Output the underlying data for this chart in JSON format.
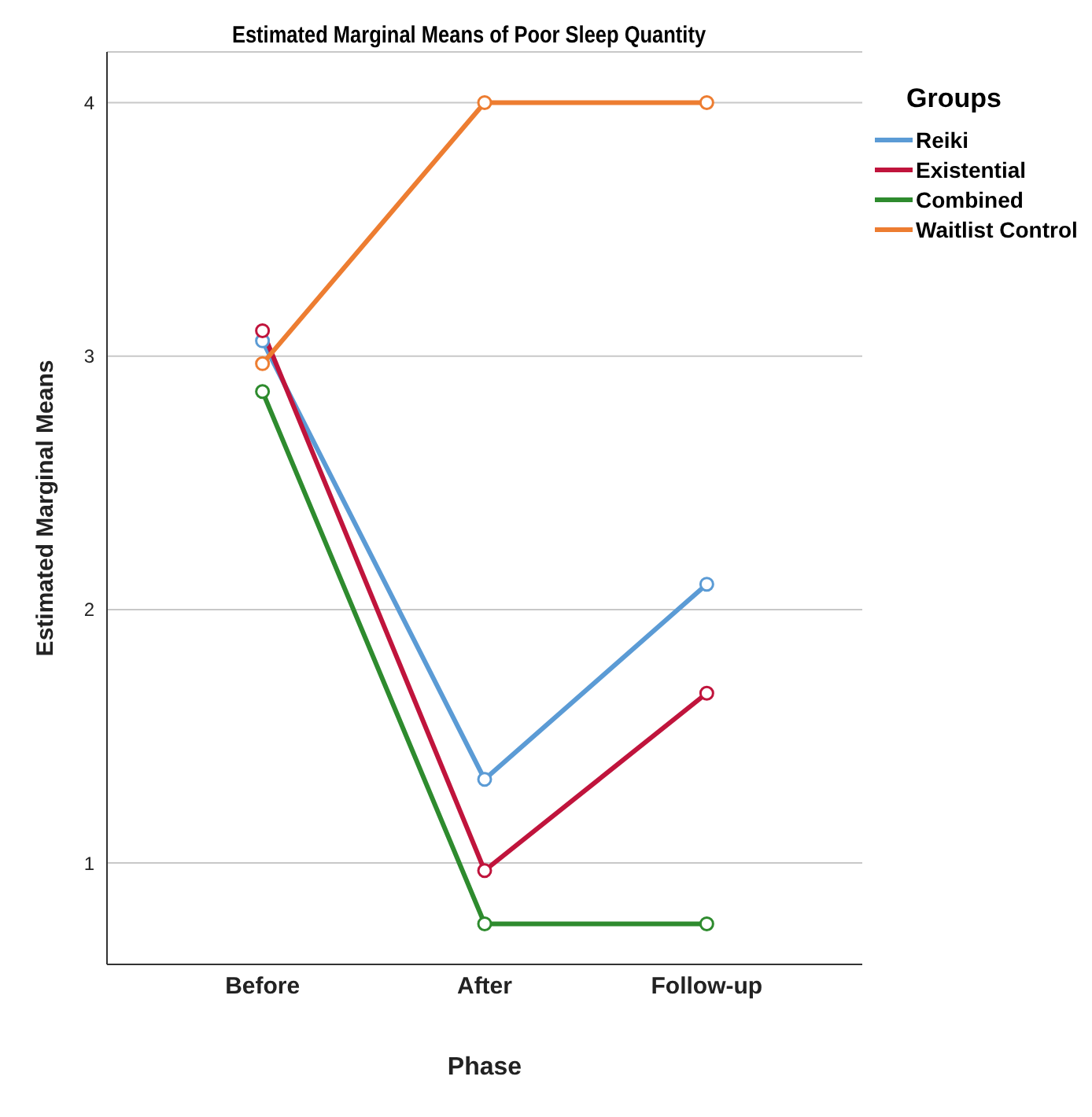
{
  "chart_data": {
    "type": "line",
    "title": "Estimated Marginal Means of Poor Sleep Quantity",
    "xlabel": "Phase",
    "ylabel": "Estimated Marginal Means",
    "legend_title": "Groups",
    "legend": "right",
    "grid": "y",
    "marker": "circle",
    "categories": [
      "Before",
      "After",
      "Follow-up"
    ],
    "ylim": [
      0.6,
      4.2
    ],
    "yticks": [
      1,
      2,
      3,
      4
    ],
    "series": [
      {
        "name": "Reiki",
        "color": "#5b9bd5",
        "values": [
          3.06,
          1.33,
          2.1
        ]
      },
      {
        "name": "Existential",
        "color": "#c0143c",
        "values": [
          3.1,
          0.97,
          1.67
        ]
      },
      {
        "name": "Combined",
        "color": "#2e8b2e",
        "values": [
          2.86,
          0.76,
          0.76
        ]
      },
      {
        "name": "Waitlist Control",
        "color": "#ed7d31",
        "values": [
          2.97,
          4.0,
          4.0
        ]
      }
    ]
  }
}
